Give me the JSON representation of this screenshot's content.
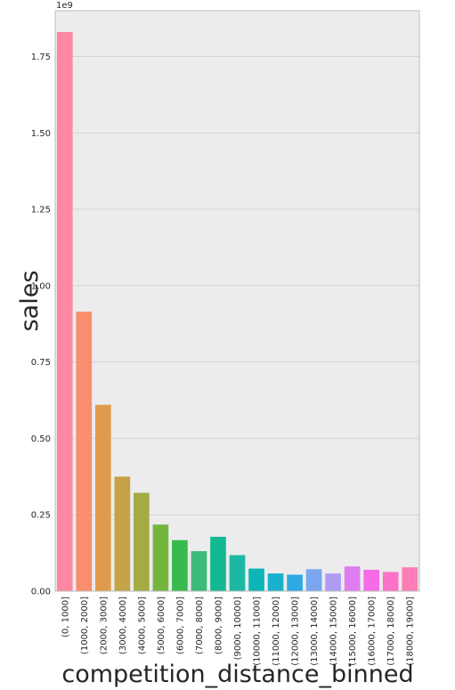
{
  "chart_data": {
    "type": "bar",
    "xlabel": "competition_distance_binned",
    "ylabel": "sales",
    "y_offset_label": "1e9",
    "y_scale": 1000000000,
    "ylim": [
      0,
      1.9
    ],
    "yticks": [
      0.0,
      0.25,
      0.5,
      0.75,
      1.0,
      1.25,
      1.5,
      1.75
    ],
    "ytick_labels": [
      "0.00",
      "0.25",
      "0.50",
      "0.75",
      "1.00",
      "1.25",
      "1.50",
      "1.75"
    ],
    "grid": true,
    "legend": "none",
    "background": "#ececec",
    "categories": [
      "(0, 1000]",
      "(1000, 2000]",
      "(2000, 3000]",
      "(3000, 4000]",
      "(4000, 5000]",
      "(5000, 6000]",
      "(6000, 7000]",
      "(7000, 8000]",
      "(8000, 9000]",
      "(9000, 10000]",
      "(10000, 11000]",
      "(11000, 12000]",
      "(12000, 13000]",
      "(13000, 14000]",
      "(14000, 15000]",
      "(15000, 16000]",
      "(16000, 17000]",
      "(17000, 18000]",
      "(18000, 19000]"
    ],
    "values": [
      1.83,
      0.915,
      0.61,
      0.375,
      0.322,
      0.218,
      0.167,
      0.131,
      0.178,
      0.118,
      0.074,
      0.058,
      0.054,
      0.072,
      0.058,
      0.081,
      0.07,
      0.063,
      0.078
    ],
    "colors": [
      "#ff87a2",
      "#f88e6e",
      "#e09a4c",
      "#c4a247",
      "#a4ab43",
      "#74b53e",
      "#39ba4c",
      "#3dba7a",
      "#12b993",
      "#1db8a4",
      "#0cb5b7",
      "#1ab1cd",
      "#2ea9e4",
      "#7aa6f0",
      "#b09bf2",
      "#de7cf0",
      "#f56be8",
      "#fb72c8",
      "#ff7db7"
    ]
  }
}
